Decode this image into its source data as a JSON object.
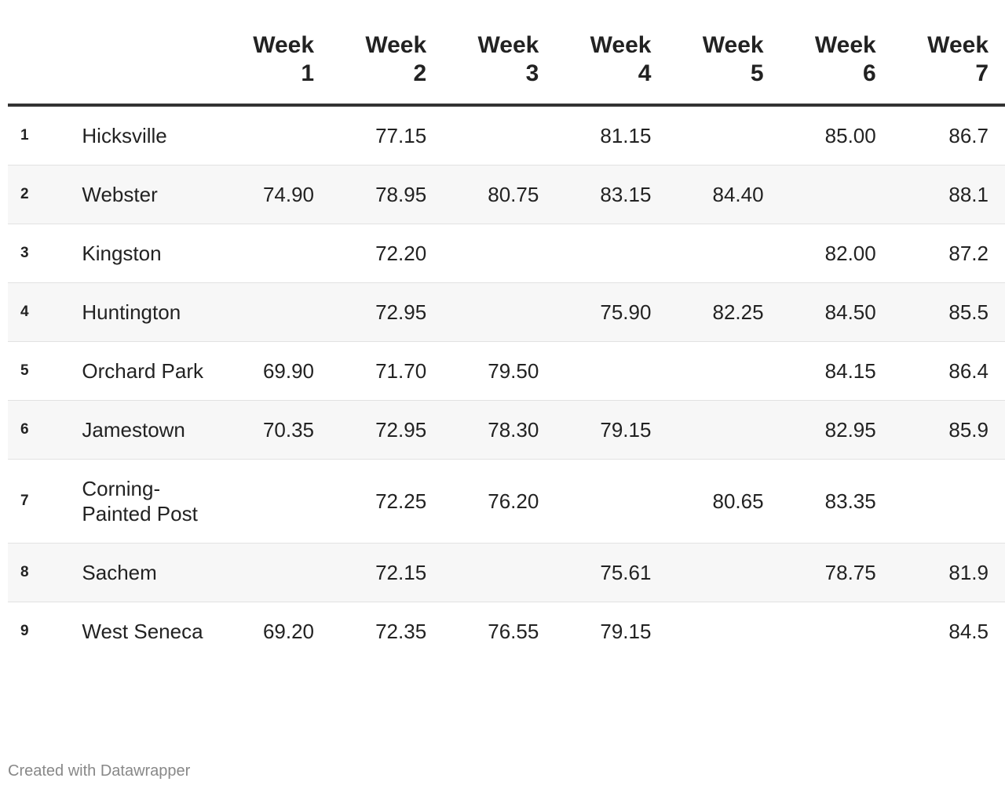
{
  "table": {
    "headers": [
      "Week 1",
      "Week 2",
      "Week 3",
      "Week 4",
      "Week 5",
      "Week 6",
      "Week 7"
    ],
    "rows": [
      {
        "rank": "1",
        "name": "Hicksville",
        "values": [
          "",
          "77.15",
          "",
          "81.15",
          "",
          "85.00",
          "86.7"
        ]
      },
      {
        "rank": "2",
        "name": "Webster",
        "values": [
          "74.90",
          "78.95",
          "80.75",
          "83.15",
          "84.40",
          "",
          "88.1"
        ]
      },
      {
        "rank": "3",
        "name": "Kingston",
        "values": [
          "",
          "72.20",
          "",
          "",
          "",
          "82.00",
          "87.2"
        ]
      },
      {
        "rank": "4",
        "name": "Huntington",
        "values": [
          "",
          "72.95",
          "",
          "75.90",
          "82.25",
          "84.50",
          "85.5"
        ]
      },
      {
        "rank": "5",
        "name": "Orchard Park",
        "values": [
          "69.90",
          "71.70",
          "79.50",
          "",
          "",
          "84.15",
          "86.4"
        ]
      },
      {
        "rank": "6",
        "name": "Jamestown",
        "values": [
          "70.35",
          "72.95",
          "78.30",
          "79.15",
          "",
          "82.95",
          "85.9"
        ]
      },
      {
        "rank": "7",
        "name": "Corning-Painted Post",
        "values": [
          "",
          "72.25",
          "76.20",
          "",
          "80.65",
          "83.35",
          ""
        ]
      },
      {
        "rank": "8",
        "name": "Sachem",
        "values": [
          "",
          "72.15",
          "",
          "75.61",
          "",
          "78.75",
          "81.9"
        ]
      },
      {
        "rank": "9",
        "name": "West Seneca",
        "values": [
          "69.20",
          "72.35",
          "76.55",
          "79.15",
          "",
          "",
          "84.5"
        ]
      }
    ]
  },
  "footer": {
    "credit": "Created with Datawrapper"
  }
}
